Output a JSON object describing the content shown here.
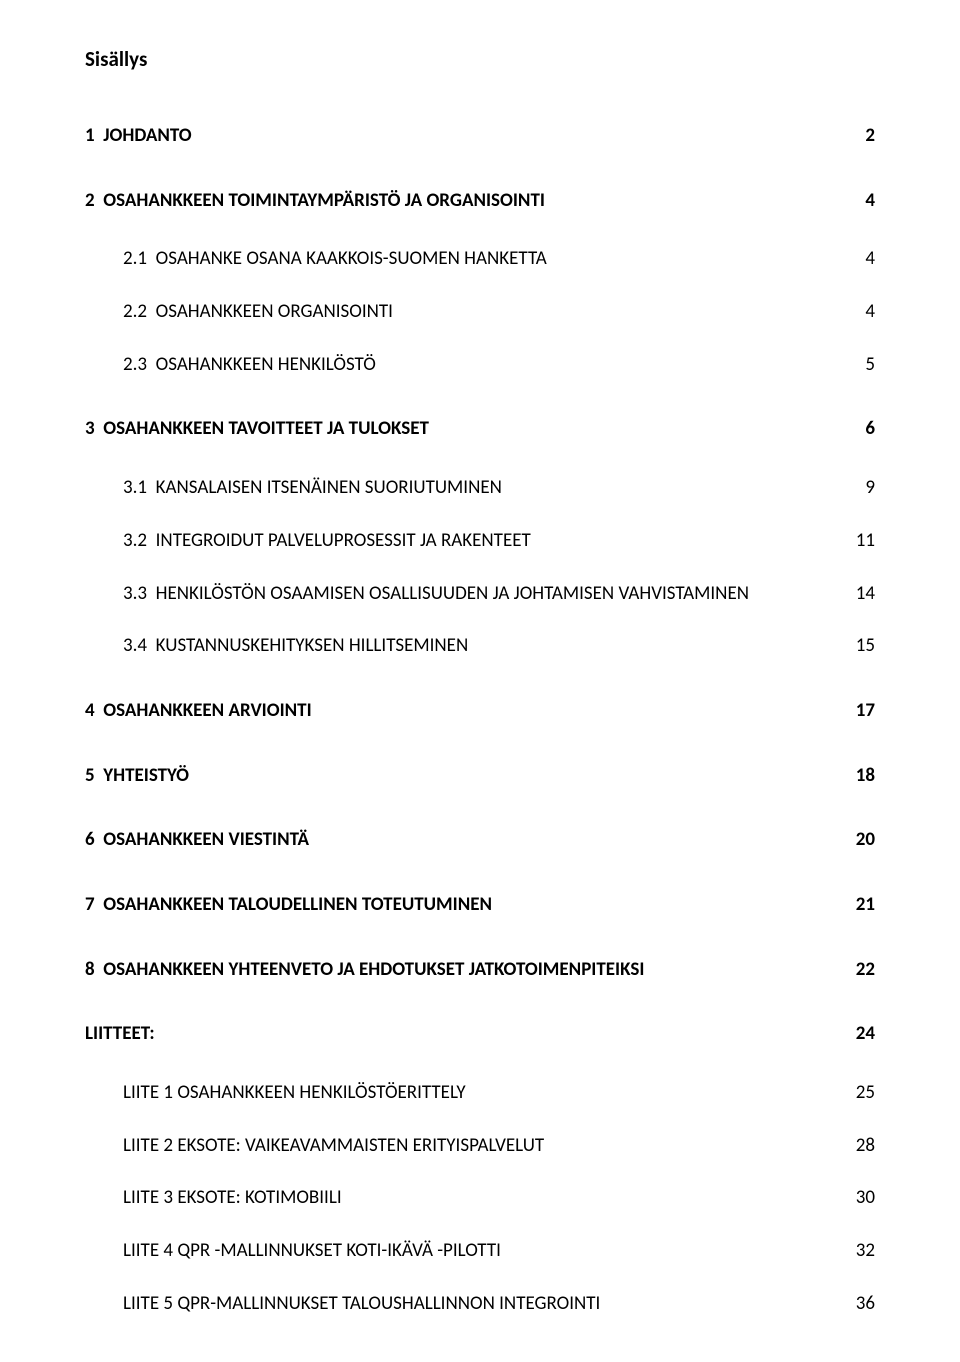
{
  "title": "Sisällys",
  "entries": [
    {
      "level": 1,
      "label": "1  JOHDANTO",
      "page": "2"
    },
    {
      "level": 1,
      "label": "2  OSAHANKKEEN TOIMINTAYMPÄRISTÖ JA ORGANISOINTI",
      "page": "4"
    },
    {
      "level": 2,
      "label": "2.1  OSAHANKE OSANA KAAKKOIS-SUOMEN HANKETTA",
      "page": "4"
    },
    {
      "level": 2,
      "label": "2.2  OSAHANKKEEN ORGANISOINTI",
      "page": "4"
    },
    {
      "level": 2,
      "label": "2.3  OSAHANKKEEN HENKILÖSTÖ",
      "page": "5"
    },
    {
      "level": 1,
      "label": "3  OSAHANKKEEN TAVOITTEET JA TULOKSET",
      "page": "6"
    },
    {
      "level": 2,
      "label": "3.1  KANSALAISEN ITSENÄINEN SUORIUTUMINEN",
      "page": "9"
    },
    {
      "level": 2,
      "label": "3.2  INTEGROIDUT PALVELUPROSESSIT JA RAKENTEET",
      "page": "11"
    },
    {
      "level": 2,
      "label": "3.3  HENKILÖSTÖN OSAAMISEN OSALLISUUDEN JA JOHTAMISEN VAHVISTAMINEN",
      "page": "14"
    },
    {
      "level": 2,
      "label": "3.4  KUSTANNUSKEHITYKSEN HILLITSEMINEN",
      "page": "15"
    },
    {
      "level": 1,
      "label": "4  OSAHANKKEEN ARVIOINTI",
      "page": "17"
    },
    {
      "level": 1,
      "label": "5  YHTEISTYÖ",
      "page": "18"
    },
    {
      "level": 1,
      "label": "6  OSAHANKKEEN VIESTINTÄ",
      "page": "20"
    },
    {
      "level": 1,
      "label": "7  OSAHANKKEEN TALOUDELLINEN TOTEUTUMINEN",
      "page": "21"
    },
    {
      "level": 1,
      "label": "8  OSAHANKKEEN YHTEENVETO JA EHDOTUKSET JATKOTOIMENPITEIKSI",
      "page": "22"
    },
    {
      "level": 1,
      "label": "LIITTEET:",
      "page": "24"
    },
    {
      "level": 2,
      "label": "LIITE 1 OSAHANKKEEN HENKILÖSTÖERITTELY",
      "page": "25"
    },
    {
      "level": 2,
      "label": "LIITE 2 EKSOTE: VAIKEAVAMMAISTEN ERITYISPALVELUT",
      "page": "28"
    },
    {
      "level": 2,
      "label": "LIITE 3 EKSOTE: KOTIMOBIILI",
      "page": "30"
    },
    {
      "level": 2,
      "label": "LIITE 4 QPR -MALLINNUKSET KOTI-IKÄVÄ -PILOTTI",
      "page": "32"
    },
    {
      "level": 2,
      "label": "LIITE 5 QPR-MALLINNUKSET TALOUSHALLINNON INTEGROINTI",
      "page": "36"
    }
  ]
}
